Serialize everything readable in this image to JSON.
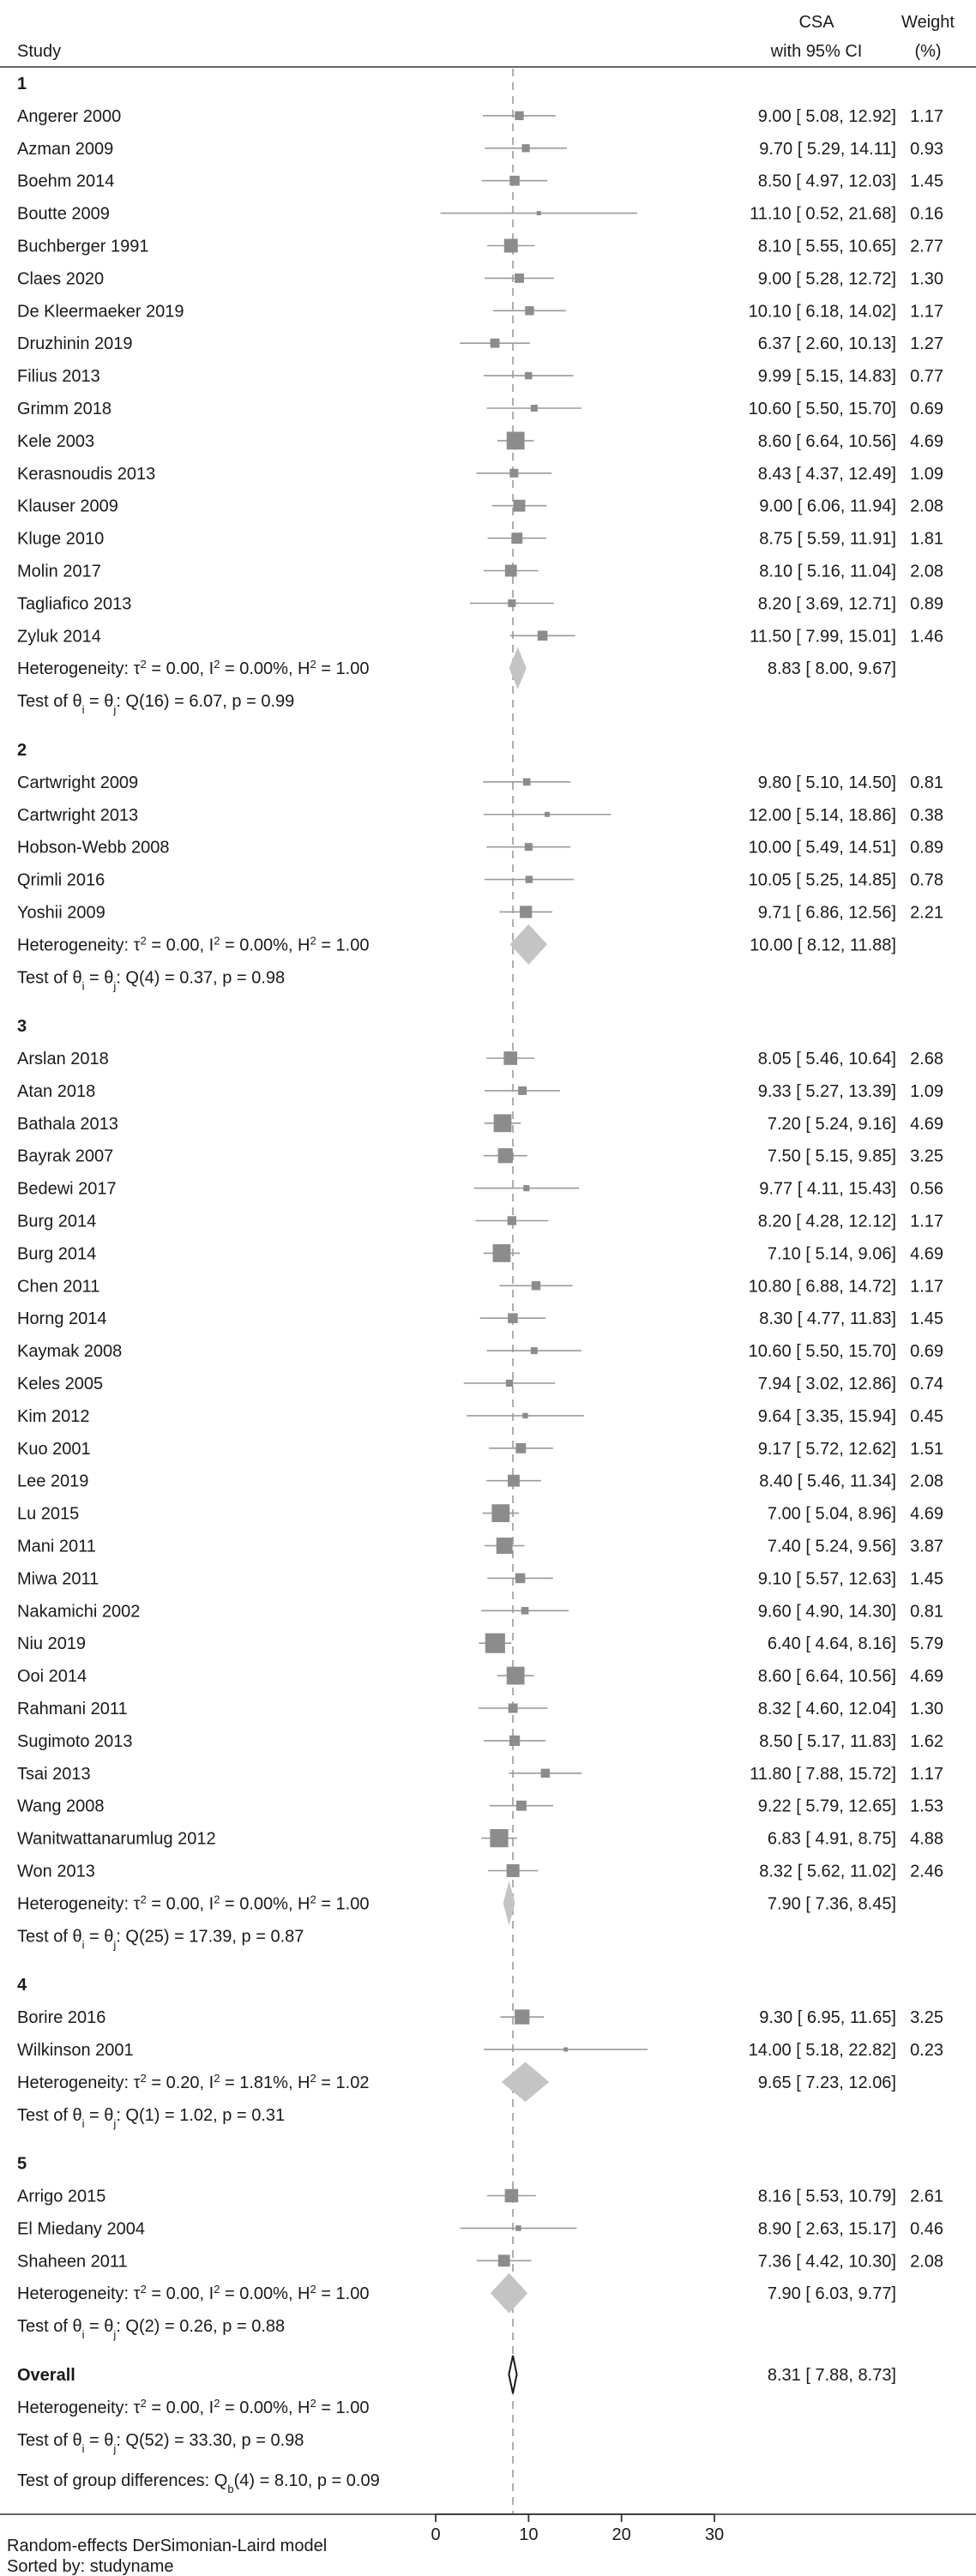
{
  "header": {
    "study": "Study",
    "csa_line1": "CSA",
    "csa_line2": "with 95% CI",
    "weight_line1": "Weight",
    "weight_line2": "(%)"
  },
  "chart_data": {
    "type": "forest",
    "xlim": [
      0,
      30
    ],
    "xticks": [
      0,
      10,
      20,
      30
    ],
    "overall_line": 8.31,
    "groups": [
      {
        "label": "1",
        "studies": [
          {
            "name": "Angerer 2000",
            "est": 9.0,
            "lo": 5.08,
            "hi": 12.92,
            "text": "9.00 [ 5.08, 12.92]",
            "weight": "1.17"
          },
          {
            "name": "Azman 2009",
            "est": 9.7,
            "lo": 5.29,
            "hi": 14.11,
            "text": "9.70 [ 5.29, 14.11]",
            "weight": "0.93"
          },
          {
            "name": "Boehm 2014",
            "est": 8.5,
            "lo": 4.97,
            "hi": 12.03,
            "text": "8.50 [ 4.97, 12.03]",
            "weight": "1.45"
          },
          {
            "name": "Boutte 2009",
            "est": 11.1,
            "lo": 0.52,
            "hi": 21.68,
            "text": "11.10 [ 0.52, 21.68]",
            "weight": "0.16"
          },
          {
            "name": "Buchberger 1991",
            "est": 8.1,
            "lo": 5.55,
            "hi": 10.65,
            "text": "8.10 [ 5.55, 10.65]",
            "weight": "2.77"
          },
          {
            "name": "Claes 2020",
            "est": 9.0,
            "lo": 5.28,
            "hi": 12.72,
            "text": "9.00 [ 5.28, 12.72]",
            "weight": "1.30"
          },
          {
            "name": "De Kleermaeker 2019",
            "est": 10.1,
            "lo": 6.18,
            "hi": 14.02,
            "text": "10.10 [ 6.18, 14.02]",
            "weight": "1.17"
          },
          {
            "name": "Druzhinin 2019",
            "est": 6.37,
            "lo": 2.6,
            "hi": 10.13,
            "text": "6.37 [ 2.60, 10.13]",
            "weight": "1.27"
          },
          {
            "name": "Filius 2013",
            "est": 9.99,
            "lo": 5.15,
            "hi": 14.83,
            "text": "9.99 [ 5.15, 14.83]",
            "weight": "0.77"
          },
          {
            "name": "Grimm 2018",
            "est": 10.6,
            "lo": 5.5,
            "hi": 15.7,
            "text": "10.60 [ 5.50, 15.70]",
            "weight": "0.69"
          },
          {
            "name": "Kele 2003",
            "est": 8.6,
            "lo": 6.64,
            "hi": 10.56,
            "text": "8.60 [ 6.64, 10.56]",
            "weight": "4.69"
          },
          {
            "name": "Kerasnoudis 2013",
            "est": 8.43,
            "lo": 4.37,
            "hi": 12.49,
            "text": "8.43 [ 4.37, 12.49]",
            "weight": "1.09"
          },
          {
            "name": "Klauser 2009",
            "est": 9.0,
            "lo": 6.06,
            "hi": 11.94,
            "text": "9.00 [ 6.06, 11.94]",
            "weight": "2.08"
          },
          {
            "name": "Kluge 2010",
            "est": 8.75,
            "lo": 5.59,
            "hi": 11.91,
            "text": "8.75 [ 5.59, 11.91]",
            "weight": "1.81"
          },
          {
            "name": "Molin 2017",
            "est": 8.1,
            "lo": 5.16,
            "hi": 11.04,
            "text": "8.10 [ 5.16, 11.04]",
            "weight": "2.08"
          },
          {
            "name": "Tagliafico 2013",
            "est": 8.2,
            "lo": 3.69,
            "hi": 12.71,
            "text": "8.20 [ 3.69, 12.71]",
            "weight": "0.89"
          },
          {
            "name": "Zyluk 2014",
            "est": 11.5,
            "lo": 7.99,
            "hi": 15.01,
            "text": "11.50 [ 7.99, 15.01]",
            "weight": "1.46"
          }
        ],
        "summary": {
          "est": 8.83,
          "lo": 8.0,
          "hi": 9.67,
          "text": "8.83 [ 8.00, 9.67]"
        },
        "het": {
          "tau2": "0.00",
          "i2": "0.00%",
          "h2": "1.00"
        },
        "test": {
          "df": "16",
          "q": "6.07",
          "p": "0.99"
        }
      },
      {
        "label": "2",
        "studies": [
          {
            "name": "Cartwright 2009",
            "est": 9.8,
            "lo": 5.1,
            "hi": 14.5,
            "text": "9.80 [ 5.10, 14.50]",
            "weight": "0.81"
          },
          {
            "name": "Cartwright 2013",
            "est": 12.0,
            "lo": 5.14,
            "hi": 18.86,
            "text": "12.00 [ 5.14, 18.86]",
            "weight": "0.38"
          },
          {
            "name": "Hobson-Webb 2008",
            "est": 10.0,
            "lo": 5.49,
            "hi": 14.51,
            "text": "10.00 [ 5.49, 14.51]",
            "weight": "0.89"
          },
          {
            "name": "Qrimli 2016",
            "est": 10.05,
            "lo": 5.25,
            "hi": 14.85,
            "text": "10.05 [ 5.25, 14.85]",
            "weight": "0.78"
          },
          {
            "name": "Yoshii 2009",
            "est": 9.71,
            "lo": 6.86,
            "hi": 12.56,
            "text": "9.71 [ 6.86, 12.56]",
            "weight": "2.21"
          }
        ],
        "summary": {
          "est": 10.0,
          "lo": 8.12,
          "hi": 11.88,
          "text": "10.00 [ 8.12, 11.88]"
        },
        "het": {
          "tau2": "0.00",
          "i2": "0.00%",
          "h2": "1.00"
        },
        "test": {
          "df": "4",
          "q": "0.37",
          "p": "0.98"
        }
      },
      {
        "label": "3",
        "studies": [
          {
            "name": "Arslan 2018",
            "est": 8.05,
            "lo": 5.46,
            "hi": 10.64,
            "text": "8.05 [ 5.46, 10.64]",
            "weight": "2.68"
          },
          {
            "name": "Atan 2018",
            "est": 9.33,
            "lo": 5.27,
            "hi": 13.39,
            "text": "9.33 [ 5.27, 13.39]",
            "weight": "1.09"
          },
          {
            "name": "Bathala 2013",
            "est": 7.2,
            "lo": 5.24,
            "hi": 9.16,
            "text": "7.20 [ 5.24, 9.16]",
            "weight": "4.69"
          },
          {
            "name": "Bayrak 2007",
            "est": 7.5,
            "lo": 5.15,
            "hi": 9.85,
            "text": "7.50 [ 5.15, 9.85]",
            "weight": "3.25"
          },
          {
            "name": "Bedewi 2017",
            "est": 9.77,
            "lo": 4.11,
            "hi": 15.43,
            "text": "9.77 [ 4.11, 15.43]",
            "weight": "0.56"
          },
          {
            "name": "Burg 2014",
            "est": 8.2,
            "lo": 4.28,
            "hi": 12.12,
            "text": "8.20 [ 4.28, 12.12]",
            "weight": "1.17"
          },
          {
            "name": "Burg 2014",
            "est": 7.1,
            "lo": 5.14,
            "hi": 9.06,
            "text": "7.10 [ 5.14, 9.06]",
            "weight": "4.69"
          },
          {
            "name": "Chen 2011",
            "est": 10.8,
            "lo": 6.88,
            "hi": 14.72,
            "text": "10.80 [ 6.88, 14.72]",
            "weight": "1.17"
          },
          {
            "name": "Horng 2014",
            "est": 8.3,
            "lo": 4.77,
            "hi": 11.83,
            "text": "8.30 [ 4.77, 11.83]",
            "weight": "1.45"
          },
          {
            "name": "Kaymak 2008",
            "est": 10.6,
            "lo": 5.5,
            "hi": 15.7,
            "text": "10.60 [ 5.50, 15.70]",
            "weight": "0.69"
          },
          {
            "name": "Keles 2005",
            "est": 7.94,
            "lo": 3.02,
            "hi": 12.86,
            "text": "7.94 [ 3.02, 12.86]",
            "weight": "0.74"
          },
          {
            "name": "Kim 2012",
            "est": 9.64,
            "lo": 3.35,
            "hi": 15.94,
            "text": "9.64 [ 3.35, 15.94]",
            "weight": "0.45"
          },
          {
            "name": "Kuo 2001",
            "est": 9.17,
            "lo": 5.72,
            "hi": 12.62,
            "text": "9.17 [ 5.72, 12.62]",
            "weight": "1.51"
          },
          {
            "name": "Lee 2019",
            "est": 8.4,
            "lo": 5.46,
            "hi": 11.34,
            "text": "8.40 [ 5.46, 11.34]",
            "weight": "2.08"
          },
          {
            "name": "Lu 2015",
            "est": 7.0,
            "lo": 5.04,
            "hi": 8.96,
            "text": "7.00 [ 5.04, 8.96]",
            "weight": "4.69"
          },
          {
            "name": "Mani 2011",
            "est": 7.4,
            "lo": 5.24,
            "hi": 9.56,
            "text": "7.40 [ 5.24, 9.56]",
            "weight": "3.87"
          },
          {
            "name": "Miwa 2011",
            "est": 9.1,
            "lo": 5.57,
            "hi": 12.63,
            "text": "9.10 [ 5.57, 12.63]",
            "weight": "1.45"
          },
          {
            "name": "Nakamichi 2002",
            "est": 9.6,
            "lo": 4.9,
            "hi": 14.3,
            "text": "9.60 [ 4.90, 14.30]",
            "weight": "0.81"
          },
          {
            "name": "Niu 2019",
            "est": 6.4,
            "lo": 4.64,
            "hi": 8.16,
            "text": "6.40 [ 4.64, 8.16]",
            "weight": "5.79"
          },
          {
            "name": "Ooi 2014",
            "est": 8.6,
            "lo": 6.64,
            "hi": 10.56,
            "text": "8.60 [ 6.64, 10.56]",
            "weight": "4.69"
          },
          {
            "name": "Rahmani 2011",
            "est": 8.32,
            "lo": 4.6,
            "hi": 12.04,
            "text": "8.32 [ 4.60, 12.04]",
            "weight": "1.30"
          },
          {
            "name": "Sugimoto 2013",
            "est": 8.5,
            "lo": 5.17,
            "hi": 11.83,
            "text": "8.50 [ 5.17, 11.83]",
            "weight": "1.62"
          },
          {
            "name": "Tsai 2013",
            "est": 11.8,
            "lo": 7.88,
            "hi": 15.72,
            "text": "11.80 [ 7.88, 15.72]",
            "weight": "1.17"
          },
          {
            "name": "Wang 2008",
            "est": 9.22,
            "lo": 5.79,
            "hi": 12.65,
            "text": "9.22 [ 5.79, 12.65]",
            "weight": "1.53"
          },
          {
            "name": "Wanitwattanarumlug 2012",
            "est": 6.83,
            "lo": 4.91,
            "hi": 8.75,
            "text": "6.83 [ 4.91, 8.75]",
            "weight": "4.88"
          },
          {
            "name": "Won 2013",
            "est": 8.32,
            "lo": 5.62,
            "hi": 11.02,
            "text": "8.32 [ 5.62, 11.02]",
            "weight": "2.46"
          }
        ],
        "summary": {
          "est": 7.9,
          "lo": 7.36,
          "hi": 8.45,
          "text": "7.90 [ 7.36, 8.45]"
        },
        "het": {
          "tau2": "0.00",
          "i2": "0.00%",
          "h2": "1.00"
        },
        "test": {
          "df": "25",
          "q": "17.39",
          "p": "0.87"
        }
      },
      {
        "label": "4",
        "studies": [
          {
            "name": "Borire 2016",
            "est": 9.3,
            "lo": 6.95,
            "hi": 11.65,
            "text": "9.30 [ 6.95, 11.65]",
            "weight": "3.25"
          },
          {
            "name": "Wilkinson 2001",
            "est": 14.0,
            "lo": 5.18,
            "hi": 22.82,
            "text": "14.00 [ 5.18, 22.82]",
            "weight": "0.23"
          }
        ],
        "summary": {
          "est": 9.65,
          "lo": 7.23,
          "hi": 12.06,
          "text": "9.65 [ 7.23, 12.06]"
        },
        "het": {
          "tau2": "0.20",
          "i2": "1.81%",
          "h2": "1.02"
        },
        "test": {
          "df": "1",
          "q": "1.02",
          "p": "0.31"
        }
      },
      {
        "label": "5",
        "studies": [
          {
            "name": "Arrigo 2015",
            "est": 8.16,
            "lo": 5.53,
            "hi": 10.79,
            "text": "8.16 [ 5.53, 10.79]",
            "weight": "2.61"
          },
          {
            "name": "El Miedany  2004",
            "est": 8.9,
            "lo": 2.63,
            "hi": 15.17,
            "text": "8.90 [ 2.63, 15.17]",
            "weight": "0.46"
          },
          {
            "name": "Shaheen 2011",
            "est": 7.36,
            "lo": 4.42,
            "hi": 10.3,
            "text": "7.36 [ 4.42, 10.30]",
            "weight": "2.08"
          }
        ],
        "summary": {
          "est": 7.9,
          "lo": 6.03,
          "hi": 9.77,
          "text": "7.90 [ 6.03, 9.77]"
        },
        "het": {
          "tau2": "0.00",
          "i2": "0.00%",
          "h2": "1.00"
        },
        "test": {
          "df": "2",
          "q": "0.26",
          "p": "0.88"
        }
      }
    ],
    "overall": {
      "label": "Overall",
      "est": 8.31,
      "lo": 7.88,
      "hi": 8.73,
      "text": "8.31 [ 7.88, 8.73]",
      "het": {
        "tau2": "0.00",
        "i2": "0.00%",
        "h2": "1.00"
      },
      "test": {
        "df": "52",
        "q": "33.30",
        "p": "0.98"
      }
    },
    "group_diff": {
      "df": "4",
      "q": "8.10",
      "p": "0.09"
    },
    "colors": {
      "marker": "#8c8c8c",
      "diamond": "#c4c4c4",
      "ci_line": "#9a9a9a",
      "refline": "#9a9a9a",
      "axis": "#333333",
      "text": "#1a1a1a"
    }
  },
  "footer": {
    "model": "Random-effects DerSimonian-Laird model",
    "sorted": "Sorted by: studyname"
  }
}
